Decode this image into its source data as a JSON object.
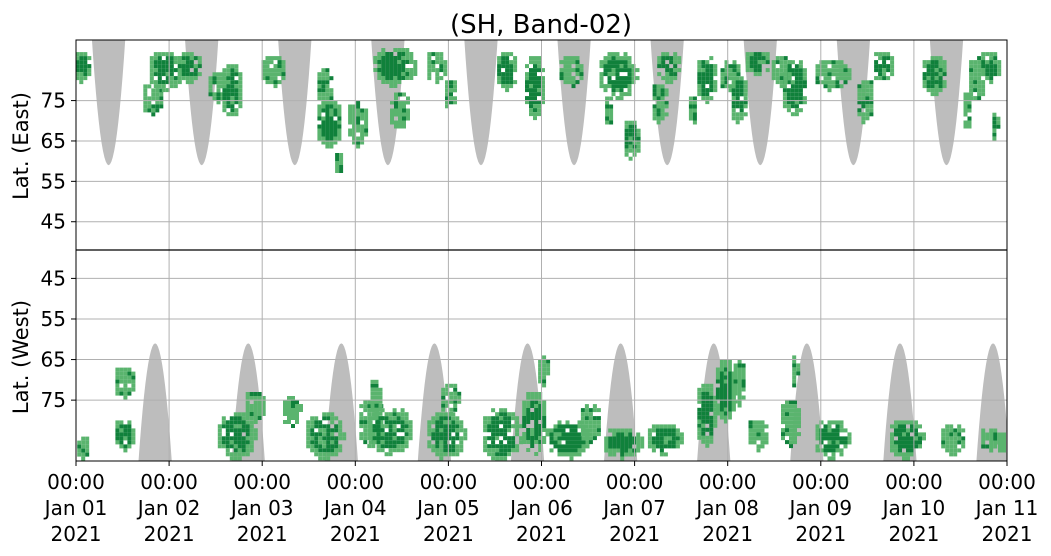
{
  "chart_data": {
    "type": "heatmap",
    "title": "(SH, Band-02)",
    "ylabel_top": "Lat. (East)",
    "ylabel_bottom": "Lat. (West)",
    "xlabel": "",
    "x_range": [
      "2021-01-01 00:00",
      "2021-01-11 00:00"
    ],
    "x_ticks": [
      {
        "line1": "00:00",
        "line2": "Jan 01",
        "line3": "2021"
      },
      {
        "line1": "00:00",
        "line2": "Jan 02",
        "line3": "2021"
      },
      {
        "line1": "00:00",
        "line2": "Jan 03",
        "line3": "2021"
      },
      {
        "line1": "00:00",
        "line2": "Jan 04",
        "line3": "2021"
      },
      {
        "line1": "00:00",
        "line2": "Jan 05",
        "line3": "2021"
      },
      {
        "line1": "00:00",
        "line2": "Jan 06",
        "line3": "2021"
      },
      {
        "line1": "00:00",
        "line2": "Jan 07",
        "line3": "2021"
      },
      {
        "line1": "00:00",
        "line2": "Jan 08",
        "line3": "2021"
      },
      {
        "line1": "00:00",
        "line2": "Jan 09",
        "line3": "2021"
      },
      {
        "line1": "00:00",
        "line2": "Jan 10",
        "line3": "2021"
      },
      {
        "line1": "00:00",
        "line2": "Jan 11",
        "line3": "2021"
      }
    ],
    "y_ticks_east": [
      45,
      55,
      65,
      75
    ],
    "y_ticks_west": [
      75,
      65,
      55,
      45
    ],
    "lat_range": [
      38,
      90
    ],
    "grid": true,
    "colors": {
      "dark_green": "#10813b",
      "light_green": "#5ab46e",
      "gray": "#bdbdbd",
      "grid": "#b0b0b0",
      "axis": "#000000"
    },
    "gray_regions": [
      {
        "hemisphere": "east",
        "center_day": 0.35,
        "half_width_days": 0.18,
        "reach_lat": 59
      },
      {
        "hemisphere": "east",
        "center_day": 1.35,
        "half_width_days": 0.18,
        "reach_lat": 59
      },
      {
        "hemisphere": "east",
        "center_day": 2.35,
        "half_width_days": 0.18,
        "reach_lat": 59
      },
      {
        "hemisphere": "east",
        "center_day": 3.35,
        "half_width_days": 0.18,
        "reach_lat": 59
      },
      {
        "hemisphere": "east",
        "center_day": 4.35,
        "half_width_days": 0.18,
        "reach_lat": 59
      },
      {
        "hemisphere": "east",
        "center_day": 5.35,
        "half_width_days": 0.18,
        "reach_lat": 59
      },
      {
        "hemisphere": "east",
        "center_day": 6.35,
        "half_width_days": 0.18,
        "reach_lat": 59
      },
      {
        "hemisphere": "east",
        "center_day": 7.35,
        "half_width_days": 0.18,
        "reach_lat": 59
      },
      {
        "hemisphere": "east",
        "center_day": 8.35,
        "half_width_days": 0.18,
        "reach_lat": 59
      },
      {
        "hemisphere": "east",
        "center_day": 9.35,
        "half_width_days": 0.18,
        "reach_lat": 59
      },
      {
        "hemisphere": "west",
        "center_day": 0.85,
        "half_width_days": 0.18,
        "reach_lat": 61
      },
      {
        "hemisphere": "west",
        "center_day": 1.85,
        "half_width_days": 0.18,
        "reach_lat": 61
      },
      {
        "hemisphere": "west",
        "center_day": 2.85,
        "half_width_days": 0.18,
        "reach_lat": 61
      },
      {
        "hemisphere": "west",
        "center_day": 3.85,
        "half_width_days": 0.18,
        "reach_lat": 61
      },
      {
        "hemisphere": "west",
        "center_day": 4.85,
        "half_width_days": 0.18,
        "reach_lat": 61
      },
      {
        "hemisphere": "west",
        "center_day": 5.85,
        "half_width_days": 0.18,
        "reach_lat": 61
      },
      {
        "hemisphere": "west",
        "center_day": 6.85,
        "half_width_days": 0.18,
        "reach_lat": 61
      },
      {
        "hemisphere": "west",
        "center_day": 7.85,
        "half_width_days": 0.18,
        "reach_lat": 61
      },
      {
        "hemisphere": "west",
        "center_day": 8.85,
        "half_width_days": 0.18,
        "reach_lat": 61
      },
      {
        "hemisphere": "west",
        "center_day": 9.85,
        "half_width_days": 0.18,
        "reach_lat": 61
      }
    ],
    "green_blobs": [
      {
        "hemisphere": "east",
        "day": 0.05,
        "lat": 84,
        "d_day": 0.1,
        "d_lat": 4,
        "intensity": "dark"
      },
      {
        "hemisphere": "west",
        "day": 0.05,
        "lat": 86,
        "d_day": 0.08,
        "d_lat": 3,
        "intensity": "light"
      },
      {
        "hemisphere": "west",
        "day": 0.5,
        "lat": 83,
        "d_day": 0.12,
        "d_lat": 4,
        "intensity": "dark"
      },
      {
        "hemisphere": "west",
        "day": 0.5,
        "lat": 70,
        "d_day": 0.12,
        "d_lat": 4,
        "intensity": "light"
      },
      {
        "hemisphere": "east",
        "day": 0.8,
        "lat": 76,
        "d_day": 0.12,
        "d_lat": 4,
        "intensity": "light"
      },
      {
        "hemisphere": "east",
        "day": 0.95,
        "lat": 83,
        "d_day": 0.2,
        "d_lat": 5,
        "intensity": "dark"
      },
      {
        "hemisphere": "east",
        "day": 1.2,
        "lat": 84,
        "d_day": 0.15,
        "d_lat": 4,
        "intensity": "dark"
      },
      {
        "hemisphere": "east",
        "day": 1.5,
        "lat": 79,
        "d_day": 0.12,
        "d_lat": 4,
        "intensity": "light"
      },
      {
        "hemisphere": "east",
        "day": 1.65,
        "lat": 78,
        "d_day": 0.12,
        "d_lat": 7,
        "intensity": "dark"
      },
      {
        "hemisphere": "west",
        "day": 1.7,
        "lat": 83,
        "d_day": 0.22,
        "d_lat": 6,
        "intensity": "dark"
      },
      {
        "hemisphere": "west",
        "day": 1.9,
        "lat": 76,
        "d_day": 0.12,
        "d_lat": 4,
        "intensity": "light"
      },
      {
        "hemisphere": "east",
        "day": 2.1,
        "lat": 83,
        "d_day": 0.15,
        "d_lat": 4,
        "intensity": "light"
      },
      {
        "hemisphere": "west",
        "day": 2.3,
        "lat": 77,
        "d_day": 0.12,
        "d_lat": 4,
        "intensity": "light"
      },
      {
        "hemisphere": "east",
        "day": 2.7,
        "lat": 70,
        "d_day": 0.15,
        "d_lat": 6,
        "intensity": "dark"
      },
      {
        "hemisphere": "east",
        "day": 2.65,
        "lat": 79,
        "d_day": 0.1,
        "d_lat": 5,
        "intensity": "light"
      },
      {
        "hemisphere": "west",
        "day": 2.65,
        "lat": 83,
        "d_day": 0.22,
        "d_lat": 6,
        "intensity": "dark"
      },
      {
        "hemisphere": "east",
        "day": 2.8,
        "lat": 60,
        "d_day": 0.06,
        "d_lat": 3,
        "intensity": "light"
      },
      {
        "hemisphere": "east",
        "day": 3.0,
        "lat": 70,
        "d_day": 0.12,
        "d_lat": 6,
        "intensity": "light"
      },
      {
        "hemisphere": "west",
        "day": 3.15,
        "lat": 80,
        "d_day": 0.15,
        "d_lat": 6,
        "intensity": "light"
      },
      {
        "hemisphere": "east",
        "day": 3.4,
        "lat": 84,
        "d_day": 0.25,
        "d_lat": 5,
        "intensity": "dark"
      },
      {
        "hemisphere": "east",
        "day": 3.45,
        "lat": 73,
        "d_day": 0.12,
        "d_lat": 5,
        "intensity": "light"
      },
      {
        "hemisphere": "west",
        "day": 3.35,
        "lat": 82,
        "d_day": 0.25,
        "d_lat": 6,
        "intensity": "dark"
      },
      {
        "hemisphere": "west",
        "day": 3.2,
        "lat": 74,
        "d_day": 0.08,
        "d_lat": 5,
        "intensity": "light"
      },
      {
        "hemisphere": "east",
        "day": 3.85,
        "lat": 84,
        "d_day": 0.12,
        "d_lat": 4,
        "intensity": "light"
      },
      {
        "hemisphere": "west",
        "day": 3.95,
        "lat": 83,
        "d_day": 0.22,
        "d_lat": 6,
        "intensity": "dark"
      },
      {
        "hemisphere": "west",
        "day": 4.0,
        "lat": 74,
        "d_day": 0.12,
        "d_lat": 4,
        "intensity": "light"
      },
      {
        "hemisphere": "east",
        "day": 4.0,
        "lat": 77,
        "d_day": 0.08,
        "d_lat": 4,
        "intensity": "light"
      },
      {
        "hemisphere": "west",
        "day": 4.55,
        "lat": 83,
        "d_day": 0.22,
        "d_lat": 7,
        "intensity": "dark"
      },
      {
        "hemisphere": "east",
        "day": 4.6,
        "lat": 83,
        "d_day": 0.12,
        "d_lat": 5,
        "intensity": "dark"
      },
      {
        "hemisphere": "east",
        "day": 4.9,
        "lat": 79,
        "d_day": 0.12,
        "d_lat": 8,
        "intensity": "dark"
      },
      {
        "hemisphere": "west",
        "day": 4.9,
        "lat": 80,
        "d_day": 0.15,
        "d_lat": 8,
        "intensity": "dark"
      },
      {
        "hemisphere": "west",
        "day": 5.0,
        "lat": 67,
        "d_day": 0.08,
        "d_lat": 4,
        "intensity": "light"
      },
      {
        "hemisphere": "west",
        "day": 5.25,
        "lat": 84,
        "d_day": 0.25,
        "d_lat": 5,
        "intensity": "dark"
      },
      {
        "hemisphere": "east",
        "day": 5.3,
        "lat": 83,
        "d_day": 0.15,
        "d_lat": 4,
        "intensity": "light"
      },
      {
        "hemisphere": "west",
        "day": 5.5,
        "lat": 80,
        "d_day": 0.12,
        "d_lat": 5,
        "intensity": "light"
      },
      {
        "hemisphere": "east",
        "day": 5.8,
        "lat": 82,
        "d_day": 0.22,
        "d_lat": 6,
        "intensity": "dark"
      },
      {
        "hemisphere": "east",
        "day": 5.7,
        "lat": 73,
        "d_day": 0.06,
        "d_lat": 4,
        "intensity": "light"
      },
      {
        "hemisphere": "east",
        "day": 5.95,
        "lat": 66,
        "d_day": 0.1,
        "d_lat": 5,
        "intensity": "dark"
      },
      {
        "hemisphere": "west",
        "day": 5.85,
        "lat": 85,
        "d_day": 0.22,
        "d_lat": 4,
        "intensity": "dark"
      },
      {
        "hemisphere": "west",
        "day": 6.3,
        "lat": 84,
        "d_day": 0.2,
        "d_lat": 4,
        "intensity": "dark"
      },
      {
        "hemisphere": "east",
        "day": 6.35,
        "lat": 84,
        "d_day": 0.15,
        "d_lat": 4,
        "intensity": "dark"
      },
      {
        "hemisphere": "east",
        "day": 6.25,
        "lat": 75,
        "d_day": 0.1,
        "d_lat": 5,
        "intensity": "light"
      },
      {
        "hemisphere": "east",
        "day": 6.6,
        "lat": 73,
        "d_day": 0.06,
        "d_lat": 4,
        "intensity": "light"
      },
      {
        "hemisphere": "east",
        "day": 6.75,
        "lat": 81,
        "d_day": 0.12,
        "d_lat": 6,
        "intensity": "dark"
      },
      {
        "hemisphere": "west",
        "day": 6.75,
        "lat": 78,
        "d_day": 0.12,
        "d_lat": 8,
        "intensity": "dark"
      },
      {
        "hemisphere": "west",
        "day": 6.95,
        "lat": 72,
        "d_day": 0.12,
        "d_lat": 8,
        "intensity": "dark"
      },
      {
        "hemisphere": "west",
        "day": 7.1,
        "lat": 70,
        "d_day": 0.08,
        "d_lat": 6,
        "intensity": "light"
      },
      {
        "hemisphere": "east",
        "day": 7.0,
        "lat": 82,
        "d_day": 0.12,
        "d_lat": 4,
        "intensity": "light"
      },
      {
        "hemisphere": "east",
        "day": 7.1,
        "lat": 76,
        "d_day": 0.1,
        "d_lat": 6,
        "intensity": "dark"
      },
      {
        "hemisphere": "east",
        "day": 7.3,
        "lat": 85,
        "d_day": 0.15,
        "d_lat": 3,
        "intensity": "dark"
      },
      {
        "hemisphere": "west",
        "day": 7.3,
        "lat": 83,
        "d_day": 0.12,
        "d_lat": 4,
        "intensity": "light"
      },
      {
        "hemisphere": "east",
        "day": 7.7,
        "lat": 79,
        "d_day": 0.15,
        "d_lat": 7,
        "intensity": "dark"
      },
      {
        "hemisphere": "east",
        "day": 7.55,
        "lat": 83,
        "d_day": 0.12,
        "d_lat": 4,
        "intensity": "light"
      },
      {
        "hemisphere": "west",
        "day": 7.65,
        "lat": 80,
        "d_day": 0.12,
        "d_lat": 6,
        "intensity": "light"
      },
      {
        "hemisphere": "west",
        "day": 7.7,
        "lat": 67,
        "d_day": 0.05,
        "d_lat": 4,
        "intensity": "light"
      },
      {
        "hemisphere": "east",
        "day": 8.1,
        "lat": 82,
        "d_day": 0.2,
        "d_lat": 4,
        "intensity": "light"
      },
      {
        "hemisphere": "west",
        "day": 8.1,
        "lat": 84,
        "d_day": 0.2,
        "d_lat": 5,
        "intensity": "dark"
      },
      {
        "hemisphere": "east",
        "day": 8.45,
        "lat": 76,
        "d_day": 0.1,
        "d_lat": 6,
        "intensity": "light"
      },
      {
        "hemisphere": "east",
        "day": 8.65,
        "lat": 84,
        "d_day": 0.12,
        "d_lat": 4,
        "intensity": "dark"
      },
      {
        "hemisphere": "west",
        "day": 8.9,
        "lat": 84,
        "d_day": 0.2,
        "d_lat": 5,
        "intensity": "dark"
      },
      {
        "hemisphere": "east",
        "day": 9.2,
        "lat": 82,
        "d_day": 0.15,
        "d_lat": 5,
        "intensity": "dark"
      },
      {
        "hemisphere": "east",
        "day": 9.55,
        "lat": 73,
        "d_day": 0.06,
        "d_lat": 5,
        "intensity": "light"
      },
      {
        "hemisphere": "east",
        "day": 9.65,
        "lat": 81,
        "d_day": 0.1,
        "d_lat": 6,
        "intensity": "light"
      },
      {
        "hemisphere": "west",
        "day": 9.4,
        "lat": 84,
        "d_day": 0.15,
        "d_lat": 4,
        "intensity": "light"
      },
      {
        "hemisphere": "east",
        "day": 9.8,
        "lat": 84,
        "d_day": 0.12,
        "d_lat": 4,
        "intensity": "dark"
      },
      {
        "hemisphere": "west",
        "day": 9.8,
        "lat": 84,
        "d_day": 0.12,
        "d_lat": 3,
        "intensity": "light"
      },
      {
        "hemisphere": "east",
        "day": 9.85,
        "lat": 69,
        "d_day": 0.05,
        "d_lat": 4,
        "intensity": "dark"
      },
      {
        "hemisphere": "west",
        "day": 9.92,
        "lat": 85,
        "d_day": 0.06,
        "d_lat": 3,
        "intensity": "light"
      }
    ]
  }
}
